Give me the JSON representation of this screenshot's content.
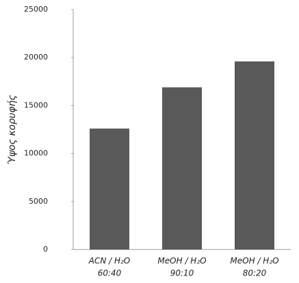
{
  "chart_data": {
    "type": "bar",
    "y_label": "Ύψος κορυφής",
    "categories": [
      [
        "ACN / H₂O",
        "60:40"
      ],
      [
        "MeOH / H₂O",
        "90:10"
      ],
      [
        "MeOH / H₂O",
        "80:20"
      ]
    ],
    "values": [
      12600,
      16900,
      19600
    ],
    "color": "#595959",
    "ylim": [
      0,
      25000
    ],
    "yticks": [
      0,
      5000,
      10000,
      15000,
      20000,
      25000
    ],
    "grid": false
  }
}
